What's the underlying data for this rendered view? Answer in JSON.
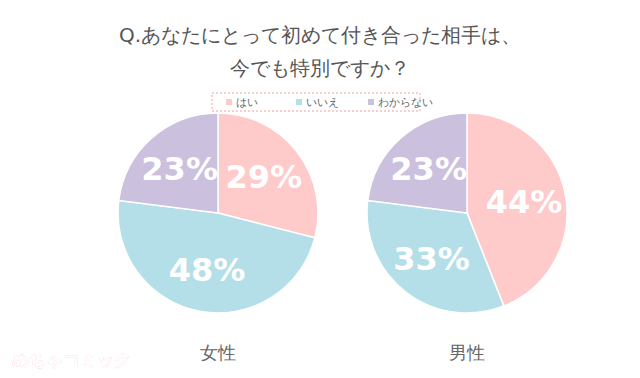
{
  "chart_data": {
    "type": "pie",
    "title": "Q.あなたにとって初めて付き合った相手は、\n今でも特別ですか？",
    "categories": [
      "はい",
      "いいえ",
      "わからない"
    ],
    "colors": [
      "#ffcaca",
      "#b4dfe8",
      "#cbc0dd"
    ],
    "legend": "top",
    "data_labels": true,
    "series": [
      {
        "name": "女性",
        "values": [
          29,
          48,
          23
        ],
        "value_labels": [
          "29%",
          "48%",
          "23%"
        ]
      },
      {
        "name": "男性",
        "values": [
          44,
          33,
          23
        ],
        "value_labels": [
          "44%",
          "33%",
          "23%"
        ]
      }
    ],
    "annotations": [
      "めちゃコミック"
    ]
  }
}
